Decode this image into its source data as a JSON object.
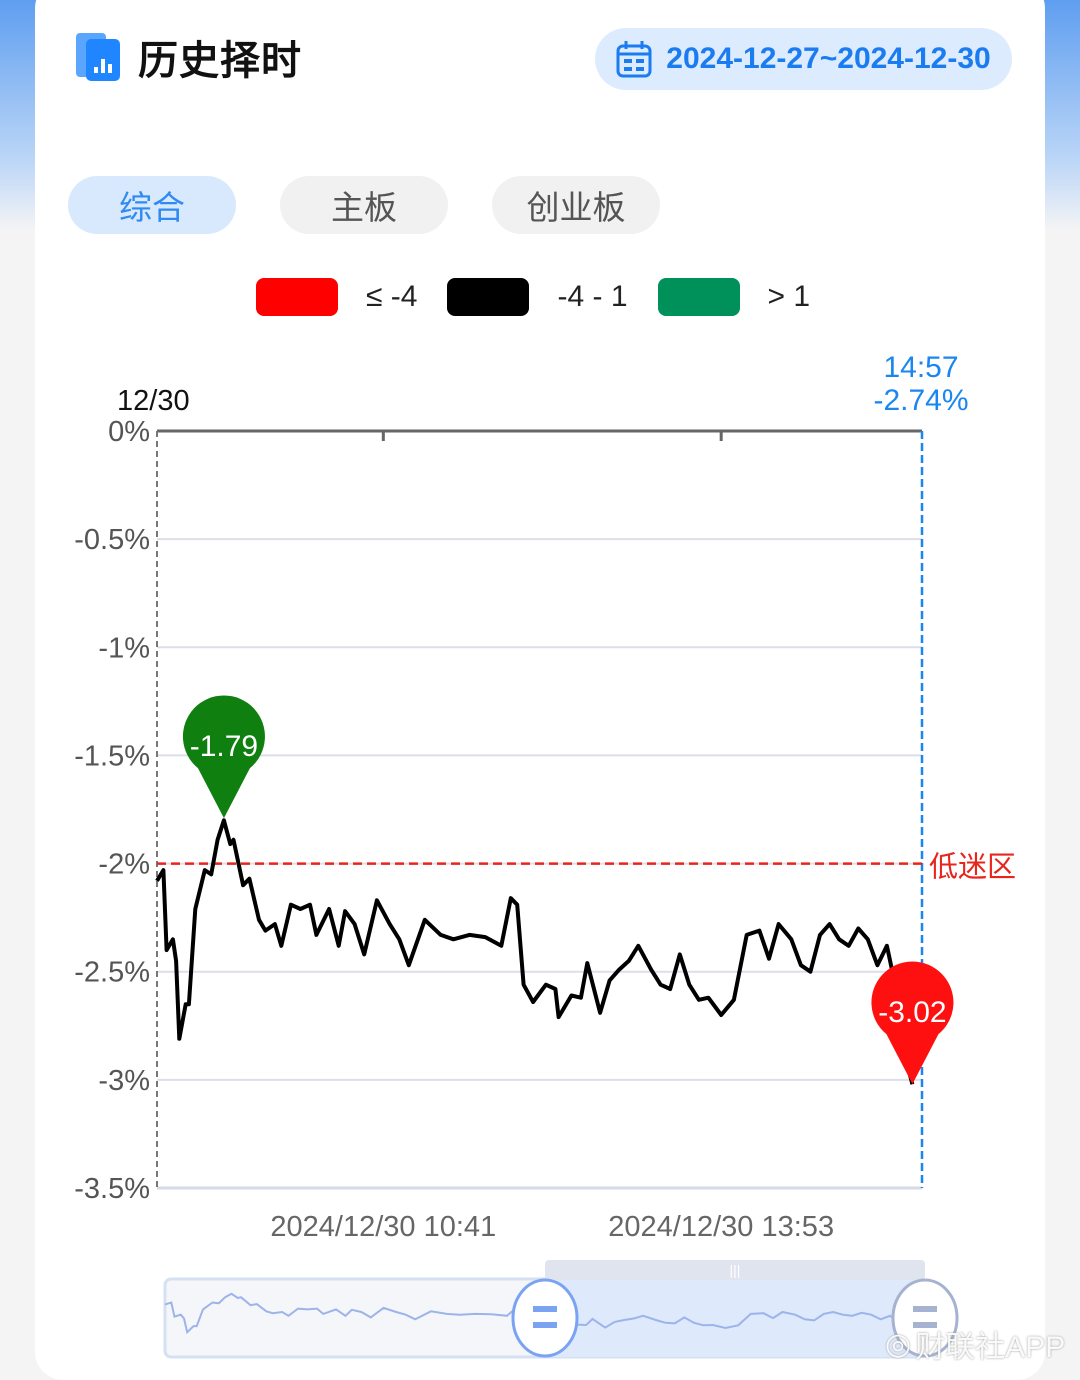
{
  "header": {
    "title": "历史择时",
    "date_range": "2024-12-27~2024-12-30",
    "calendar_icon": "calendar-icon",
    "logo_icon": "bar-chart-icon"
  },
  "tabs": [
    {
      "label": "综合",
      "active": true
    },
    {
      "label": "主板",
      "active": false
    },
    {
      "label": "创业板",
      "active": false
    }
  ],
  "legend": [
    {
      "label": "≤ -4",
      "color": "#ff0000"
    },
    {
      "label": "-4 - 1",
      "color": "#000000"
    },
    {
      "label": "> 1",
      "color": "#00915a"
    }
  ],
  "chart_data": {
    "type": "line",
    "date_label": "12/30",
    "x_unit": "trading minutes since 09:30",
    "y_ticks": [
      "0%",
      "-0.5%",
      "-1%",
      "-1.5%",
      "-2%",
      "-2.5%",
      "-3%",
      "-3.5%"
    ],
    "ylim": [
      -3.5,
      0
    ],
    "x_tick_labels": [
      {
        "minute": 71,
        "label": "2024/12/30 10:41"
      },
      {
        "minute": 177,
        "label": "2024/12/30 13:53"
      }
    ],
    "xlim": [
      0,
      240
    ],
    "grid": true,
    "threshold": {
      "value": -2,
      "label": "低迷区",
      "color": "#e8251c"
    },
    "crosshair": {
      "minute": 240,
      "time": "14:57",
      "value": "-2.74%"
    },
    "max_marker": {
      "minute": 21,
      "value": -1.79,
      "label": "-1.79",
      "color": "#0f7f10"
    },
    "min_marker": {
      "minute": 237,
      "value": -3.02,
      "label": "-3.02",
      "color": "#ff1010"
    },
    "series": [
      {
        "color": "#000000",
        "points": [
          [
            0,
            -2.08
          ],
          [
            2,
            -2.03
          ],
          [
            3,
            -2.4
          ],
          [
            5,
            -2.35
          ],
          [
            6,
            -2.45
          ],
          [
            7,
            -2.81
          ],
          [
            9,
            -2.65
          ],
          [
            10,
            -2.65
          ],
          [
            12,
            -2.21
          ],
          [
            15,
            -2.03
          ],
          [
            17,
            -2.05
          ],
          [
            19,
            -1.89
          ],
          [
            21,
            -1.8
          ],
          [
            23,
            -1.91
          ],
          [
            24,
            -1.89
          ],
          [
            27,
            -2.1
          ],
          [
            29,
            -2.07
          ],
          [
            32,
            -2.26
          ],
          [
            34,
            -2.31
          ],
          [
            37,
            -2.28
          ],
          [
            39,
            -2.38
          ],
          [
            42,
            -2.19
          ],
          [
            45,
            -2.21
          ],
          [
            48,
            -2.19
          ],
          [
            50,
            -2.33
          ],
          [
            54,
            -2.21
          ],
          [
            57,
            -2.38
          ],
          [
            59,
            -2.22
          ],
          [
            62,
            -2.28
          ],
          [
            65,
            -2.42
          ],
          [
            69,
            -2.17
          ],
          [
            73,
            -2.28
          ],
          [
            76,
            -2.35
          ],
          [
            79,
            -2.47
          ],
          [
            84,
            -2.26
          ],
          [
            89,
            -2.33
          ],
          [
            93,
            -2.35
          ],
          [
            98,
            -2.33
          ],
          [
            103,
            -2.34
          ],
          [
            108,
            -2.38
          ],
          [
            111,
            -2.16
          ],
          [
            113,
            -2.19
          ],
          [
            115,
            -2.56
          ],
          [
            118,
            -2.64
          ],
          [
            122,
            -2.56
          ],
          [
            125,
            -2.58
          ],
          [
            126,
            -2.71
          ],
          [
            130,
            -2.61
          ],
          [
            133,
            -2.62
          ],
          [
            135,
            -2.46
          ],
          [
            139,
            -2.69
          ],
          [
            142,
            -2.54
          ],
          [
            145,
            -2.49
          ],
          [
            148,
            -2.45
          ],
          [
            151,
            -2.38
          ],
          [
            155,
            -2.49
          ],
          [
            158,
            -2.56
          ],
          [
            161,
            -2.58
          ],
          [
            164,
            -2.42
          ],
          [
            167,
            -2.56
          ],
          [
            170,
            -2.63
          ],
          [
            173,
            -2.62
          ],
          [
            177,
            -2.7
          ],
          [
            181,
            -2.63
          ],
          [
            185,
            -2.33
          ],
          [
            189,
            -2.31
          ],
          [
            192,
            -2.44
          ],
          [
            195,
            -2.28
          ],
          [
            199,
            -2.35
          ],
          [
            202,
            -2.47
          ],
          [
            205,
            -2.5
          ],
          [
            208,
            -2.33
          ],
          [
            211,
            -2.28
          ],
          [
            214,
            -2.35
          ],
          [
            217,
            -2.38
          ],
          [
            220,
            -2.3
          ],
          [
            223,
            -2.35
          ],
          [
            226,
            -2.47
          ],
          [
            229,
            -2.38
          ],
          [
            231,
            -2.52
          ],
          [
            233,
            -2.86
          ],
          [
            235,
            -2.91
          ],
          [
            237,
            -3.02
          ]
        ]
      }
    ]
  },
  "range_slider": {
    "start_fraction": 0.5,
    "end_fraction": 1.0,
    "handle_icon": "drag-handle-icon",
    "grip_icon": "grip-icon"
  },
  "watermark": {
    "text": "财联社APP"
  }
}
